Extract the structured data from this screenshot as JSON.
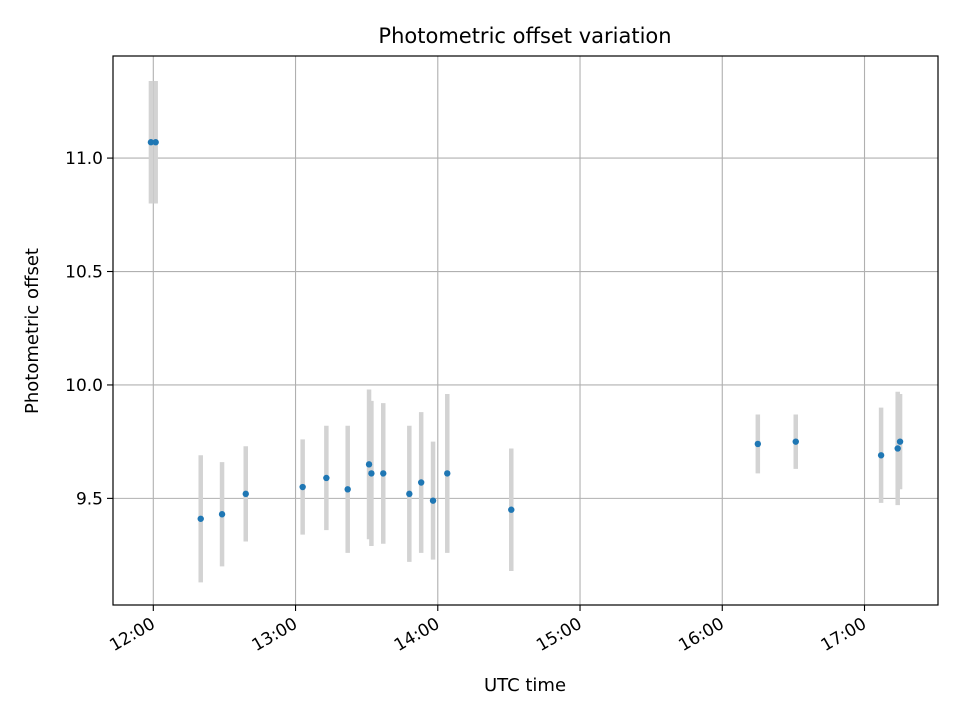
{
  "chart_data": {
    "type": "scatter",
    "title": "Photometric offset variation",
    "xlabel": "UTC time",
    "ylabel": "Photometric offset",
    "x_type": "time",
    "xlim": [
      "11:43",
      "17:31"
    ],
    "ylim": [
      9.03,
      11.45
    ],
    "xticks": [
      "12:00",
      "13:00",
      "14:00",
      "15:00",
      "16:00",
      "17:00"
    ],
    "yticks": [
      9.5,
      10.0,
      10.5,
      11.0
    ],
    "ytick_labels": [
      "9.5",
      "10.0",
      "10.5",
      "11.0"
    ],
    "grid": true,
    "marker_color": "#1f77b4",
    "errorbar_color": "#d3d3d3",
    "series": [
      {
        "points": [
          {
            "x": "11:59",
            "y": 11.07,
            "err": 0.27
          },
          {
            "x": "12:01",
            "y": 11.07,
            "err": 0.27
          },
          {
            "x": "12:20",
            "y": 9.41,
            "err": 0.28
          },
          {
            "x": "12:29",
            "y": 9.43,
            "err": 0.23
          },
          {
            "x": "12:39",
            "y": 9.52,
            "err": 0.21
          },
          {
            "x": "13:03",
            "y": 9.55,
            "err": 0.21
          },
          {
            "x": "13:13",
            "y": 9.59,
            "err": 0.23
          },
          {
            "x": "13:22",
            "y": 9.54,
            "err": 0.28
          },
          {
            "x": "13:31",
            "y": 9.65,
            "err": 0.33
          },
          {
            "x": "13:32",
            "y": 9.61,
            "err": 0.32
          },
          {
            "x": "13:37",
            "y": 9.61,
            "err": 0.31
          },
          {
            "x": "13:48",
            "y": 9.52,
            "err": 0.3
          },
          {
            "x": "13:53",
            "y": 9.57,
            "err": 0.31
          },
          {
            "x": "13:58",
            "y": 9.49,
            "err": 0.26
          },
          {
            "x": "14:04",
            "y": 9.61,
            "err": 0.35
          },
          {
            "x": "14:31",
            "y": 9.45,
            "err": 0.27
          },
          {
            "x": "16:15",
            "y": 9.74,
            "err": 0.13
          },
          {
            "x": "16:31",
            "y": 9.75,
            "err": 0.12
          },
          {
            "x": "17:07",
            "y": 9.69,
            "err": 0.21
          },
          {
            "x": "17:14",
            "y": 9.72,
            "err": 0.25
          },
          {
            "x": "17:15",
            "y": 9.75,
            "err": 0.21
          }
        ]
      }
    ]
  }
}
